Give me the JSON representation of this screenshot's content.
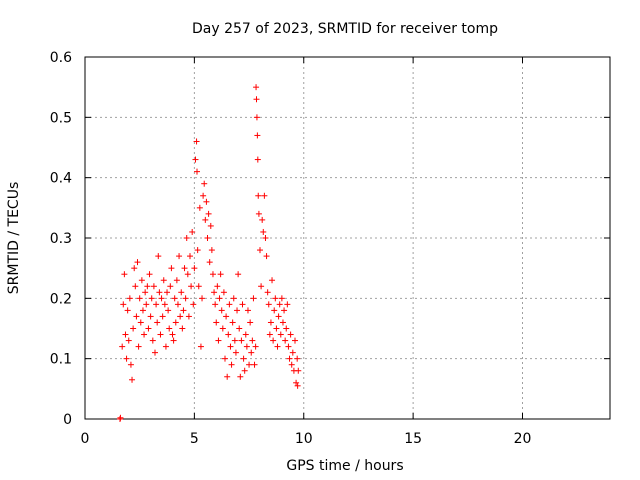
{
  "chart_data": {
    "type": "scatter",
    "title": "Day 257 of 2023, SRMTID for receiver tomp",
    "xlabel": "GPS time / hours",
    "ylabel": "SRMTID / TECUs",
    "xlim": [
      0,
      24
    ],
    "ylim": [
      0,
      0.6
    ],
    "xticks": [
      0,
      5,
      10,
      15,
      20
    ],
    "yticks": [
      0,
      0.1,
      0.2,
      0.3,
      0.4,
      0.5,
      0.6
    ],
    "xtick_labels": [
      "0",
      "5",
      "10",
      "15",
      "20"
    ],
    "ytick_labels": [
      "0",
      "0.1",
      "0.2",
      "0.3",
      "0.4",
      "0.5",
      "0.6"
    ],
    "grid": true,
    "marker": "+",
    "color": "#ff0000",
    "series": [
      {
        "name": "SRMTID",
        "points": [
          [
            1.6,
            0.0
          ],
          [
            1.62,
            0.002
          ],
          [
            1.7,
            0.12
          ],
          [
            1.75,
            0.19
          ],
          [
            1.8,
            0.24
          ],
          [
            1.85,
            0.14
          ],
          [
            1.9,
            0.1
          ],
          [
            1.95,
            0.18
          ],
          [
            2.0,
            0.13
          ],
          [
            2.05,
            0.2
          ],
          [
            2.1,
            0.09
          ],
          [
            2.15,
            0.065
          ],
          [
            2.2,
            0.15
          ],
          [
            2.25,
            0.25
          ],
          [
            2.3,
            0.22
          ],
          [
            2.35,
            0.17
          ],
          [
            2.4,
            0.26
          ],
          [
            2.45,
            0.12
          ],
          [
            2.5,
            0.2
          ],
          [
            2.55,
            0.16
          ],
          [
            2.6,
            0.23
          ],
          [
            2.65,
            0.18
          ],
          [
            2.7,
            0.14
          ],
          [
            2.75,
            0.21
          ],
          [
            2.8,
            0.19
          ],
          [
            2.85,
            0.22
          ],
          [
            2.9,
            0.15
          ],
          [
            2.95,
            0.24
          ],
          [
            3.0,
            0.17
          ],
          [
            3.05,
            0.2
          ],
          [
            3.1,
            0.13
          ],
          [
            3.15,
            0.22
          ],
          [
            3.2,
            0.11
          ],
          [
            3.25,
            0.19
          ],
          [
            3.3,
            0.16
          ],
          [
            3.35,
            0.27
          ],
          [
            3.4,
            0.21
          ],
          [
            3.45,
            0.14
          ],
          [
            3.5,
            0.2
          ],
          [
            3.55,
            0.17
          ],
          [
            3.6,
            0.23
          ],
          [
            3.65,
            0.19
          ],
          [
            3.7,
            0.12
          ],
          [
            3.75,
            0.21
          ],
          [
            3.8,
            0.18
          ],
          [
            3.85,
            0.15
          ],
          [
            3.9,
            0.22
          ],
          [
            3.95,
            0.25
          ],
          [
            4.0,
            0.14
          ],
          [
            4.05,
            0.13
          ],
          [
            4.1,
            0.2
          ],
          [
            4.15,
            0.16
          ],
          [
            4.2,
            0.23
          ],
          [
            4.25,
            0.19
          ],
          [
            4.3,
            0.27
          ],
          [
            4.35,
            0.17
          ],
          [
            4.4,
            0.21
          ],
          [
            4.45,
            0.15
          ],
          [
            4.5,
            0.18
          ],
          [
            4.55,
            0.25
          ],
          [
            4.6,
            0.2
          ],
          [
            4.65,
            0.3
          ],
          [
            4.7,
            0.24
          ],
          [
            4.75,
            0.17
          ],
          [
            4.8,
            0.27
          ],
          [
            4.85,
            0.22
          ],
          [
            4.9,
            0.31
          ],
          [
            4.95,
            0.19
          ],
          [
            5.0,
            0.25
          ],
          [
            5.05,
            0.43
          ],
          [
            5.1,
            0.46
          ],
          [
            5.12,
            0.41
          ],
          [
            5.15,
            0.28
          ],
          [
            5.2,
            0.22
          ],
          [
            5.25,
            0.35
          ],
          [
            5.3,
            0.12
          ],
          [
            5.35,
            0.2
          ],
          [
            5.4,
            0.37
          ],
          [
            5.45,
            0.39
          ],
          [
            5.5,
            0.33
          ],
          [
            5.55,
            0.36
          ],
          [
            5.6,
            0.3
          ],
          [
            5.65,
            0.34
          ],
          [
            5.7,
            0.26
          ],
          [
            5.75,
            0.32
          ],
          [
            5.8,
            0.28
          ],
          [
            5.85,
            0.24
          ],
          [
            5.9,
            0.21
          ],
          [
            5.95,
            0.19
          ],
          [
            6.0,
            0.16
          ],
          [
            6.05,
            0.22
          ],
          [
            6.1,
            0.13
          ],
          [
            6.15,
            0.2
          ],
          [
            6.2,
            0.24
          ],
          [
            6.25,
            0.18
          ],
          [
            6.3,
            0.15
          ],
          [
            6.35,
            0.21
          ],
          [
            6.4,
            0.1
          ],
          [
            6.45,
            0.17
          ],
          [
            6.5,
            0.07
          ],
          [
            6.55,
            0.14
          ],
          [
            6.6,
            0.19
          ],
          [
            6.65,
            0.12
          ],
          [
            6.7,
            0.09
          ],
          [
            6.75,
            0.16
          ],
          [
            6.8,
            0.2
          ],
          [
            6.85,
            0.13
          ],
          [
            6.9,
            0.11
          ],
          [
            6.95,
            0.18
          ],
          [
            7.0,
            0.24
          ],
          [
            7.05,
            0.15
          ],
          [
            7.1,
            0.07
          ],
          [
            7.15,
            0.13
          ],
          [
            7.2,
            0.19
          ],
          [
            7.25,
            0.1
          ],
          [
            7.3,
            0.08
          ],
          [
            7.35,
            0.14
          ],
          [
            7.4,
            0.12
          ],
          [
            7.45,
            0.18
          ],
          [
            7.5,
            0.09
          ],
          [
            7.55,
            0.16
          ],
          [
            7.6,
            0.11
          ],
          [
            7.65,
            0.13
          ],
          [
            7.7,
            0.2
          ],
          [
            7.75,
            0.09
          ],
          [
            7.8,
            0.12
          ],
          [
            7.82,
            0.55
          ],
          [
            7.84,
            0.53
          ],
          [
            7.86,
            0.5
          ],
          [
            7.88,
            0.47
          ],
          [
            7.9,
            0.43
          ],
          [
            7.92,
            0.37
          ],
          [
            7.95,
            0.34
          ],
          [
            8.0,
            0.28
          ],
          [
            8.05,
            0.22
          ],
          [
            8.1,
            0.33
          ],
          [
            8.15,
            0.31
          ],
          [
            8.2,
            0.37
          ],
          [
            8.25,
            0.3
          ],
          [
            8.3,
            0.27
          ],
          [
            8.35,
            0.21
          ],
          [
            8.4,
            0.19
          ],
          [
            8.45,
            0.14
          ],
          [
            8.5,
            0.16
          ],
          [
            8.55,
            0.23
          ],
          [
            8.6,
            0.13
          ],
          [
            8.65,
            0.18
          ],
          [
            8.7,
            0.2
          ],
          [
            8.75,
            0.15
          ],
          [
            8.8,
            0.12
          ],
          [
            8.85,
            0.17
          ],
          [
            8.9,
            0.19
          ],
          [
            8.95,
            0.14
          ],
          [
            9.0,
            0.2
          ],
          [
            9.05,
            0.16
          ],
          [
            9.1,
            0.18
          ],
          [
            9.15,
            0.13
          ],
          [
            9.2,
            0.15
          ],
          [
            9.25,
            0.19
          ],
          [
            9.3,
            0.12
          ],
          [
            9.35,
            0.1
          ],
          [
            9.4,
            0.14
          ],
          [
            9.45,
            0.09
          ],
          [
            9.5,
            0.11
          ],
          [
            9.55,
            0.08
          ],
          [
            9.6,
            0.13
          ],
          [
            9.65,
            0.06
          ],
          [
            9.7,
            0.1
          ],
          [
            9.72,
            0.055
          ],
          [
            9.75,
            0.08
          ]
        ]
      }
    ]
  }
}
